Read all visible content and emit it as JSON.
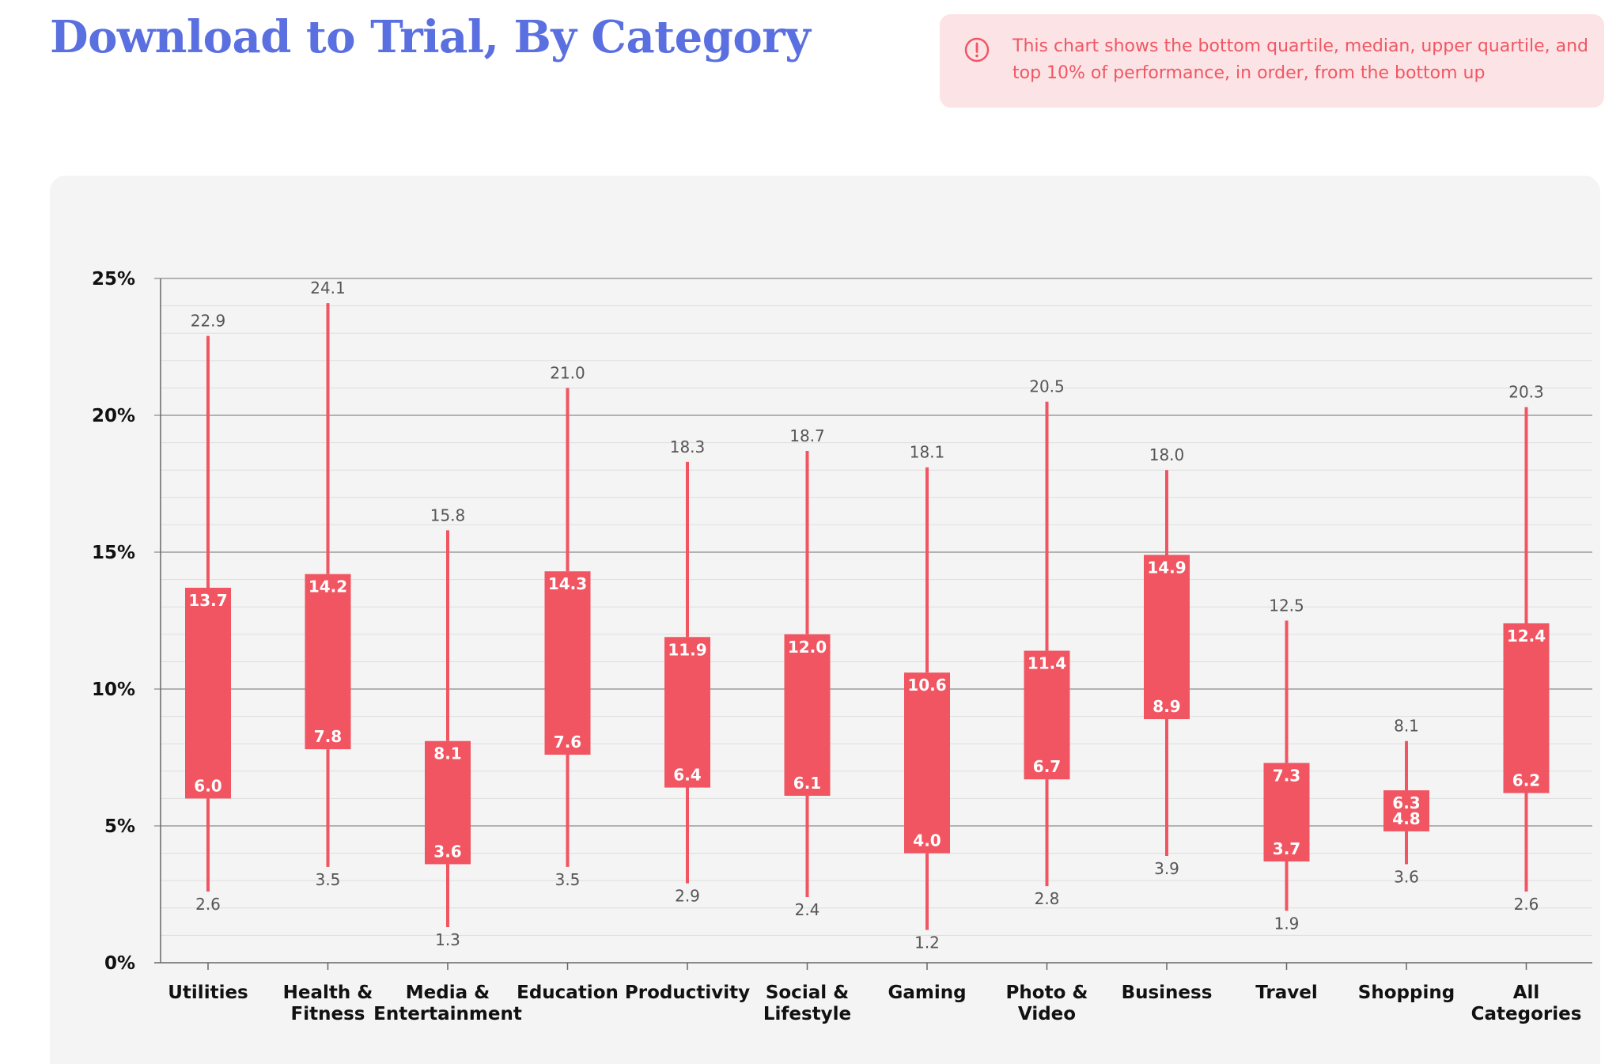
{
  "title": "Download to Trial, By Category",
  "info": {
    "text": "This chart shows the bottom quartile, median, upper quartile, and top 10% of performance, in order, from the bottom up",
    "icon": "alert-circle-icon",
    "color": "#ef5763",
    "background": "#fce3e5"
  },
  "chart_data": {
    "type": "box",
    "title": "Download to Trial, By Category",
    "xlabel": "",
    "ylabel": "",
    "ylim": [
      0,
      25
    ],
    "yticks": [
      0,
      5,
      10,
      15,
      20,
      25
    ],
    "ytick_labels": [
      "0%",
      "5%",
      "10%",
      "15%",
      "20%",
      "25%"
    ],
    "minor_grid_step": 1,
    "grid": true,
    "legend": "none",
    "colors": {
      "box": "#f05561",
      "axis": "#666666",
      "grid_major": "#8a8a8a",
      "grid_minor": "#dedede"
    },
    "categories": [
      {
        "name": [
          "Utilities"
        ],
        "bottom_quartile": 2.6,
        "median": 6.0,
        "upper_quartile": 13.7,
        "top_10": 22.9
      },
      {
        "name": [
          "Health &",
          "Fitness"
        ],
        "bottom_quartile": 3.5,
        "median": 7.8,
        "upper_quartile": 14.2,
        "top_10": 24.1
      },
      {
        "name": [
          "Media &",
          "Entertainment"
        ],
        "bottom_quartile": 1.3,
        "median": 3.6,
        "upper_quartile": 8.1,
        "top_10": 15.8
      },
      {
        "name": [
          "Education"
        ],
        "bottom_quartile": 3.5,
        "median": 7.6,
        "upper_quartile": 14.3,
        "top_10": 21.0
      },
      {
        "name": [
          "Productivity"
        ],
        "bottom_quartile": 2.9,
        "median": 6.4,
        "upper_quartile": 11.9,
        "top_10": 18.3
      },
      {
        "name": [
          "Social &",
          "Lifestyle"
        ],
        "bottom_quartile": 2.4,
        "median": 6.1,
        "upper_quartile": 12.0,
        "top_10": 18.7
      },
      {
        "name": [
          "Gaming"
        ],
        "bottom_quartile": 1.2,
        "median": 4.0,
        "upper_quartile": 10.6,
        "top_10": 18.1
      },
      {
        "name": [
          "Photo &",
          "Video"
        ],
        "bottom_quartile": 2.8,
        "median": 6.7,
        "upper_quartile": 11.4,
        "top_10": 20.5
      },
      {
        "name": [
          "Business"
        ],
        "bottom_quartile": 3.9,
        "median": 8.9,
        "upper_quartile": 14.9,
        "top_10": 18.0
      },
      {
        "name": [
          "Travel"
        ],
        "bottom_quartile": 1.9,
        "median": 3.7,
        "upper_quartile": 7.3,
        "top_10": 12.5
      },
      {
        "name": [
          "Shopping"
        ],
        "bottom_quartile": 3.6,
        "median": 4.8,
        "upper_quartile": 6.3,
        "top_10": 8.1
      },
      {
        "name": [
          "All",
          "Categories"
        ],
        "bottom_quartile": 2.6,
        "median": 6.2,
        "upper_quartile": 12.4,
        "top_10": 20.3
      }
    ]
  }
}
